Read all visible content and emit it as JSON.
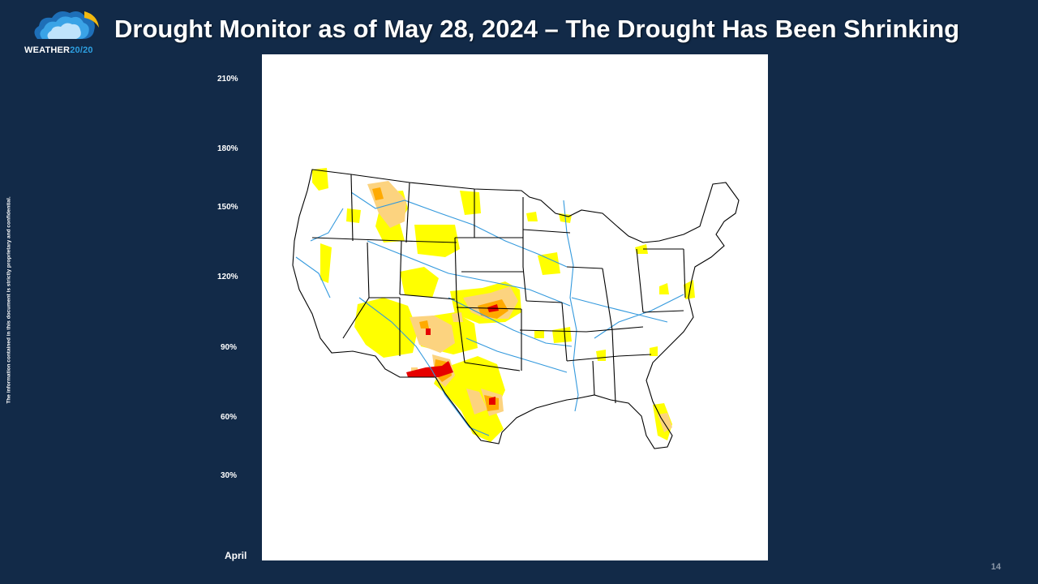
{
  "slide": {
    "title": "Drought Monitor as of May 28, 2024 – The Drought Has Been Shrinking",
    "page_number": "14",
    "confidential_note": "The information contained in this document is strictly proprietary and confidential."
  },
  "logo": {
    "text_main": "WEATHER",
    "text_accent": "20/20",
    "icon": "cloud-logo-icon"
  },
  "axis": {
    "y_ticks": [
      "210%",
      "180%",
      "150%",
      "120%",
      "90%",
      "60%",
      "30%"
    ],
    "x_label": "April"
  },
  "map": {
    "colors": {
      "d0": "#ffff00",
      "d1": "#fcd37f",
      "d2": "#ffaa00",
      "d3": "#e60000",
      "rivers": "#3399dd",
      "borders": "#000000"
    }
  },
  "colors": {
    "background": "#122a48",
    "title": "#ffffff",
    "logo_accent": "#2d9fe0"
  }
}
